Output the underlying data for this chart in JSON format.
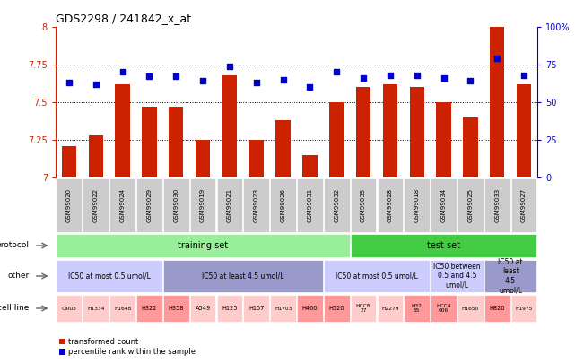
{
  "title": "GDS2298 / 241842_x_at",
  "samples": [
    "GSM99020",
    "GSM99022",
    "GSM99024",
    "GSM99029",
    "GSM99030",
    "GSM99019",
    "GSM99021",
    "GSM99023",
    "GSM99026",
    "GSM99031",
    "GSM99032",
    "GSM99035",
    "GSM99028",
    "GSM99018",
    "GSM99034",
    "GSM99025",
    "GSM99033",
    "GSM99027"
  ],
  "bar_values": [
    7.21,
    7.28,
    7.62,
    7.47,
    7.47,
    7.25,
    7.68,
    7.25,
    7.38,
    7.15,
    7.5,
    7.6,
    7.62,
    7.6,
    7.5,
    7.4,
    8.0,
    7.62
  ],
  "dot_values": [
    63,
    62,
    70,
    67,
    67,
    64,
    74,
    63,
    65,
    60,
    70,
    66,
    68,
    68,
    66,
    64,
    79,
    68
  ],
  "ylim_left": [
    7.0,
    8.0
  ],
  "ylim_right": [
    0,
    100
  ],
  "yticks_left": [
    7.0,
    7.25,
    7.5,
    7.75,
    8.0
  ],
  "ytick_labels_left": [
    "7",
    "7.25",
    "7.5",
    "7.75",
    "8"
  ],
  "yticks_right": [
    0,
    25,
    50,
    75,
    100
  ],
  "ytick_labels_right": [
    "0",
    "25",
    "50",
    "75",
    "100%"
  ],
  "bar_color": "#cc2200",
  "dot_color": "#0000cc",
  "protocol_groups": [
    {
      "text": "training set",
      "start": 0,
      "end": 10,
      "color": "#99ee99"
    },
    {
      "text": "test set",
      "start": 11,
      "end": 17,
      "color": "#44cc44"
    }
  ],
  "other_groups": [
    {
      "text": "IC50 at most 0.5 umol/L",
      "start": 0,
      "end": 3,
      "color": "#ccccff"
    },
    {
      "text": "IC50 at least 4.5 umol/L",
      "start": 4,
      "end": 9,
      "color": "#9999cc"
    },
    {
      "text": "IC50 at most 0.5 umol/L",
      "start": 10,
      "end": 13,
      "color": "#ccccff"
    },
    {
      "text": "IC50 between\n0.5 and 4.5\numol/L",
      "start": 14,
      "end": 15,
      "color": "#ccccff"
    },
    {
      "text": "IC50 at\nleast\n4.5\numol/L",
      "start": 16,
      "end": 17,
      "color": "#9999cc"
    }
  ],
  "cell_line_cells": [
    {
      "text": "Calu3",
      "color": "#ffcccc"
    },
    {
      "text": "H1334",
      "color": "#ffcccc"
    },
    {
      "text": "H1648",
      "color": "#ffcccc"
    },
    {
      "text": "H322",
      "color": "#ff9999"
    },
    {
      "text": "H358",
      "color": "#ff9999"
    },
    {
      "text": "A549",
      "color": "#ffcccc"
    },
    {
      "text": "H125",
      "color": "#ffcccc"
    },
    {
      "text": "H157",
      "color": "#ffcccc"
    },
    {
      "text": "H1703",
      "color": "#ffcccc"
    },
    {
      "text": "H460",
      "color": "#ff9999"
    },
    {
      "text": "H520",
      "color": "#ff9999"
    },
    {
      "text": "HCC8\n27",
      "color": "#ffcccc"
    },
    {
      "text": "H2279",
      "color": "#ffcccc"
    },
    {
      "text": "H32\n55",
      "color": "#ff9999"
    },
    {
      "text": "HCC4\n006",
      "color": "#ff9999"
    },
    {
      "text": "H1650",
      "color": "#ffcccc"
    },
    {
      "text": "H820",
      "color": "#ff9999"
    },
    {
      "text": "H1975",
      "color": "#ffcccc"
    }
  ],
  "legend_items": [
    {
      "label": "transformed count",
      "color": "#cc2200"
    },
    {
      "label": "percentile rank within the sample",
      "color": "#0000cc"
    }
  ],
  "bg_color": "#ffffff",
  "left_axis_color": "#cc2200",
  "right_axis_color": "#0000cc",
  "sample_bg_color": "#cccccc",
  "row_label_color": "#666666"
}
